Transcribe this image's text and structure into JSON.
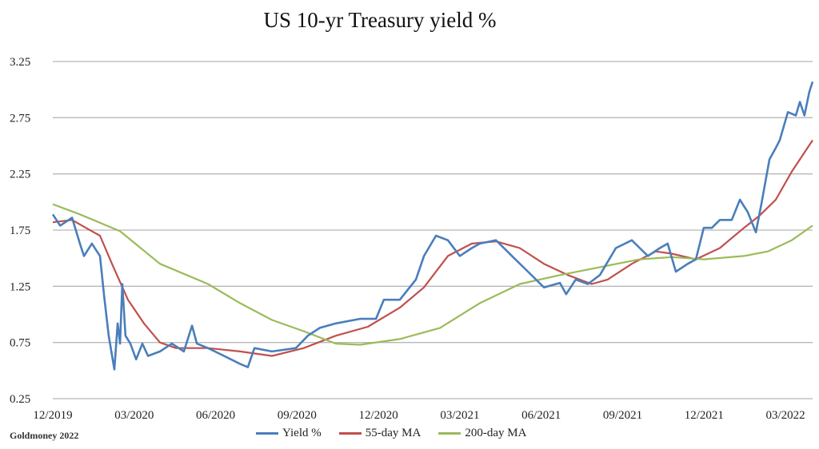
{
  "chart_data": {
    "type": "line",
    "title": "US 10-yr Treasury yield %",
    "xlabel": "",
    "ylabel": "",
    "x_unit": "months since 12/2019",
    "xlim": [
      0,
      28
    ],
    "ylim": [
      0.25,
      3.25
    ],
    "yticks": [
      "0.25",
      "0.75",
      "1.25",
      "1.75",
      "2.25",
      "2.75",
      "3.25"
    ],
    "xticks": [
      {
        "x": 0,
        "label": "12/2019"
      },
      {
        "x": 3,
        "label": "03/2020"
      },
      {
        "x": 6,
        "label": "06/2020"
      },
      {
        "x": 9,
        "label": "09/2020"
      },
      {
        "x": 12,
        "label": "12/2020"
      },
      {
        "x": 15,
        "label": "03/2021"
      },
      {
        "x": 18,
        "label": "06/2021"
      },
      {
        "x": 21,
        "label": "09/2021"
      },
      {
        "x": 24,
        "label": "12/2021"
      },
      {
        "x": 27,
        "label": "03/2022"
      }
    ],
    "grid": true,
    "legend_position": "bottom",
    "series": [
      {
        "name": "Yield %",
        "color": "#4a7ebb",
        "x": [
          0,
          0.27,
          0.71,
          1.0,
          1.15,
          1.44,
          1.74,
          1.89,
          2.06,
          2.27,
          2.39,
          2.48,
          2.56,
          2.68,
          2.86,
          3.07,
          3.3,
          3.51,
          3.95,
          4.39,
          4.83,
          5.13,
          5.31,
          5.72,
          6.31,
          6.9,
          7.19,
          7.43,
          8.08,
          8.96,
          9.4,
          9.84,
          10.43,
          11.32,
          11.91,
          12.2,
          12.79,
          13.38,
          13.68,
          14.12,
          14.56,
          15.0,
          15.44,
          15.74,
          16.33,
          16.92,
          17.51,
          18.1,
          18.69,
          18.92,
          19.27,
          19.72,
          20.16,
          20.75,
          21.34,
          21.63,
          21.93,
          22.37,
          22.66,
          22.96,
          23.4,
          23.7,
          23.99,
          24.29,
          24.58,
          25.02,
          25.32,
          25.61,
          25.91,
          26.11,
          26.41,
          26.64,
          26.79,
          27.09,
          27.38,
          27.53,
          27.7,
          27.88,
          28.0
        ],
        "y": [
          1.89,
          1.79,
          1.86,
          1.63,
          1.52,
          1.63,
          1.52,
          1.17,
          0.81,
          0.51,
          0.92,
          0.74,
          1.27,
          0.81,
          0.74,
          0.6,
          0.74,
          0.63,
          0.67,
          0.74,
          0.67,
          0.9,
          0.74,
          0.7,
          0.63,
          0.56,
          0.53,
          0.7,
          0.67,
          0.7,
          0.81,
          0.88,
          0.92,
          0.96,
          0.96,
          1.13,
          1.13,
          1.31,
          1.52,
          1.7,
          1.66,
          1.52,
          1.59,
          1.63,
          1.66,
          1.52,
          1.38,
          1.24,
          1.28,
          1.18,
          1.31,
          1.27,
          1.35,
          1.59,
          1.66,
          1.59,
          1.52,
          1.59,
          1.63,
          1.38,
          1.45,
          1.49,
          1.77,
          1.77,
          1.84,
          1.84,
          2.02,
          1.91,
          1.73,
          1.98,
          2.38,
          2.48,
          2.55,
          2.8,
          2.77,
          2.89,
          2.77,
          2.98,
          3.07
        ]
      },
      {
        "name": "55-day MA",
        "color": "#c0504d",
        "x": [
          0,
          0.71,
          1.44,
          1.74,
          2.18,
          2.77,
          3.36,
          3.95,
          4.54,
          5.72,
          6.9,
          8.08,
          9.25,
          10.43,
          11.61,
          12.79,
          13.68,
          14.56,
          15.44,
          16.33,
          17.21,
          18.1,
          18.98,
          19.86,
          20.45,
          21.34,
          22.22,
          22.81,
          23.7,
          24.58,
          25.47,
          26.05,
          26.64,
          27.23,
          28.0
        ],
        "y": [
          1.82,
          1.84,
          1.74,
          1.7,
          1.45,
          1.13,
          0.92,
          0.75,
          0.7,
          0.7,
          0.67,
          0.63,
          0.7,
          0.81,
          0.89,
          1.06,
          1.24,
          1.52,
          1.63,
          1.65,
          1.59,
          1.45,
          1.35,
          1.27,
          1.31,
          1.45,
          1.56,
          1.54,
          1.49,
          1.59,
          1.77,
          1.88,
          2.02,
          2.27,
          2.55
        ]
      },
      {
        "name": "200-day MA",
        "color": "#9bbb59",
        "x": [
          0,
          1.0,
          2.48,
          3.95,
          5.72,
          6.9,
          8.08,
          9.25,
          10.43,
          11.32,
          12.79,
          14.27,
          15.74,
          17.21,
          18.69,
          20.16,
          21.63,
          22.81,
          24.0,
          25.47,
          26.35,
          27.23,
          28.0
        ],
        "y": [
          1.98,
          1.89,
          1.74,
          1.45,
          1.27,
          1.1,
          0.95,
          0.85,
          0.74,
          0.73,
          0.78,
          0.88,
          1.1,
          1.27,
          1.35,
          1.42,
          1.49,
          1.51,
          1.49,
          1.52,
          1.56,
          1.66,
          1.79
        ]
      }
    ],
    "source": "Goldmoney 2022"
  }
}
